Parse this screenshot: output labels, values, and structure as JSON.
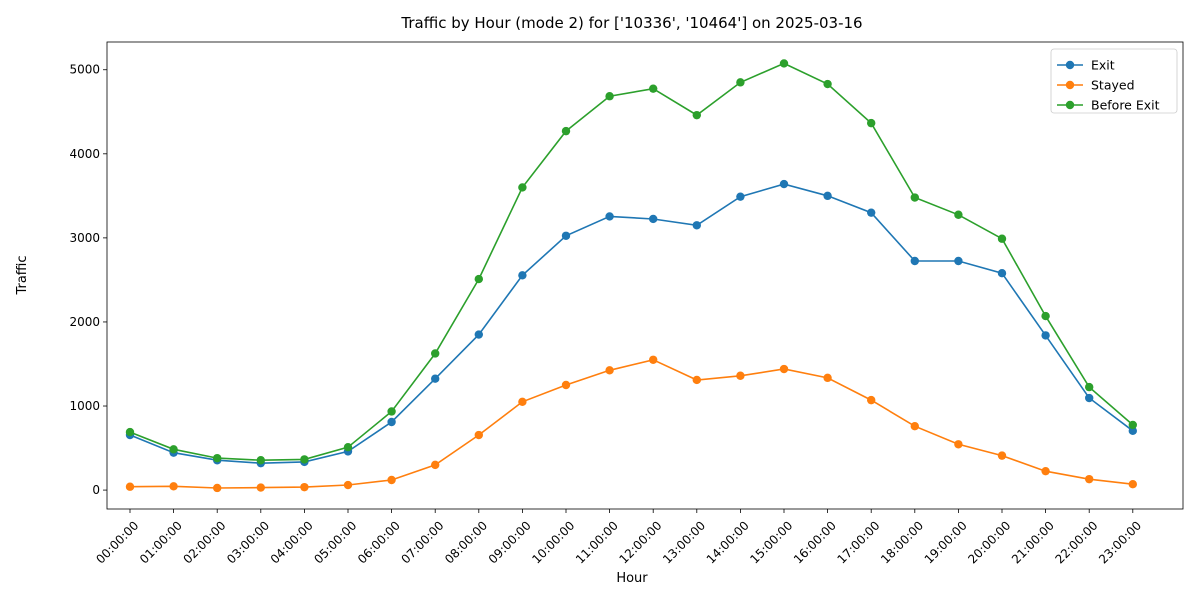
{
  "chart_data": {
    "type": "line",
    "title": "Traffic by Hour (mode 2) for ['10336', '10464'] on 2025-03-16",
    "xlabel": "Hour",
    "ylabel": "Traffic",
    "categories": [
      "00:00:00",
      "01:00:00",
      "02:00:00",
      "03:00:00",
      "04:00:00",
      "05:00:00",
      "06:00:00",
      "07:00:00",
      "08:00:00",
      "09:00:00",
      "10:00:00",
      "11:00:00",
      "12:00:00",
      "13:00:00",
      "14:00:00",
      "15:00:00",
      "16:00:00",
      "17:00:00",
      "18:00:00",
      "19:00:00",
      "20:00:00",
      "21:00:00",
      "22:00:00",
      "23:00:00"
    ],
    "yticks": [
      0,
      1000,
      2000,
      3000,
      4000,
      5000
    ],
    "ylim": [
      -225,
      5330
    ],
    "grid": false,
    "legend_position": "top-right",
    "series": [
      {
        "name": "Exit",
        "color": "#1f77b4",
        "values": [
          655,
          445,
          355,
          320,
          335,
          460,
          810,
          1325,
          1850,
          2555,
          3025,
          3255,
          3225,
          3150,
          3490,
          3640,
          3500,
          3300,
          2725,
          2725,
          2580,
          1840,
          1095,
          705
        ]
      },
      {
        "name": "Stayed",
        "color": "#ff7f0e",
        "values": [
          40,
          45,
          25,
          30,
          35,
          60,
          120,
          300,
          655,
          1050,
          1250,
          1425,
          1550,
          1310,
          1360,
          1440,
          1335,
          1070,
          760,
          545,
          410,
          225,
          130,
          70
        ]
      },
      {
        "name": "Before Exit",
        "color": "#2ca02c",
        "values": [
          690,
          485,
          380,
          355,
          365,
          510,
          935,
          1625,
          2510,
          3600,
          4270,
          4685,
          4775,
          4460,
          4850,
          5075,
          4830,
          4365,
          3480,
          3275,
          2990,
          2070,
          1225,
          775
        ]
      }
    ]
  }
}
